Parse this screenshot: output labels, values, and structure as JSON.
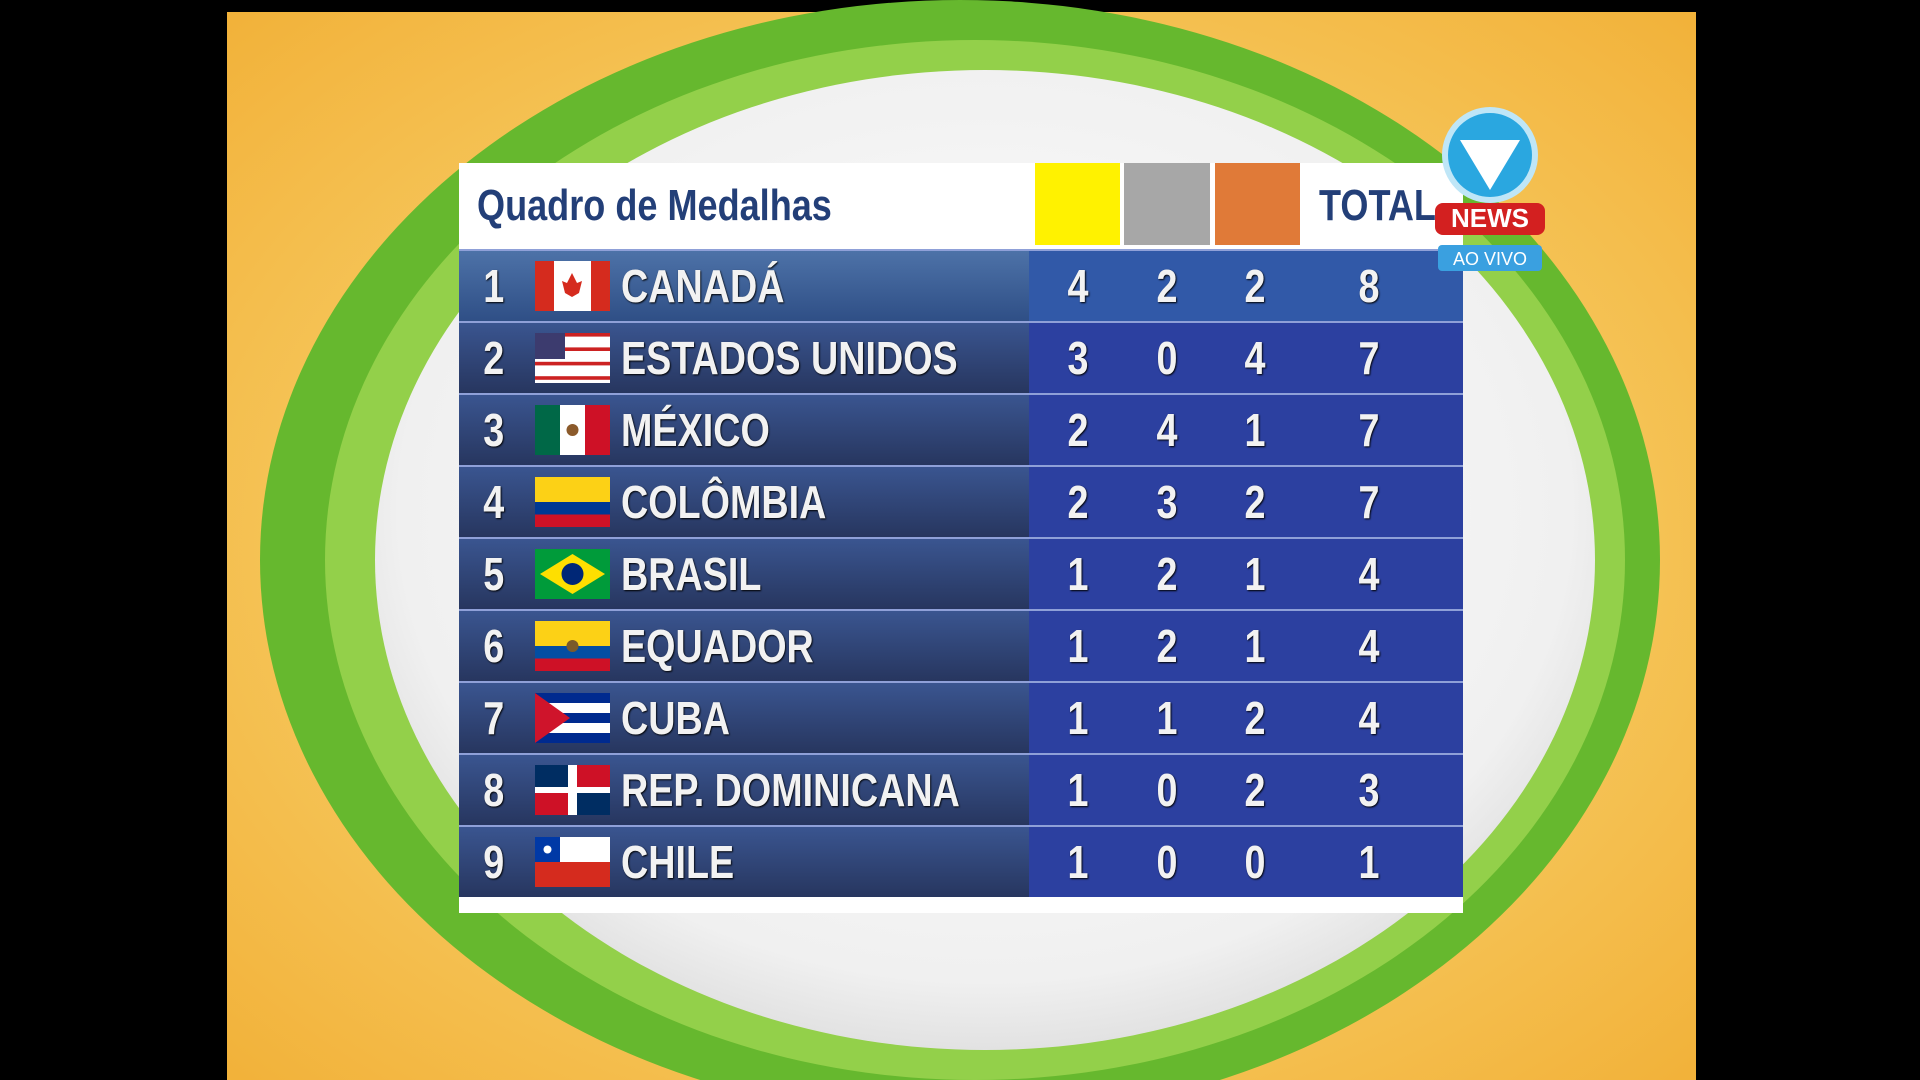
{
  "header": {
    "title": "Quadro de Medalhas",
    "total_label": "TOTAL"
  },
  "logo": {
    "brand": "NEWS",
    "status": "AO VIVO"
  },
  "table": {
    "rows": [
      {
        "rank": 1,
        "country": "CANADÁ",
        "gold": 4,
        "silver": 2,
        "bronze": 2,
        "total": 8
      },
      {
        "rank": 2,
        "country": "ESTADOS UNIDOS",
        "gold": 3,
        "silver": 0,
        "bronze": 4,
        "total": 7
      },
      {
        "rank": 3,
        "country": "MÉXICO",
        "gold": 2,
        "silver": 4,
        "bronze": 1,
        "total": 7
      },
      {
        "rank": 4,
        "country": "COLÔMBIA",
        "gold": 2,
        "silver": 3,
        "bronze": 2,
        "total": 7
      },
      {
        "rank": 5,
        "country": "BRASIL",
        "gold": 1,
        "silver": 2,
        "bronze": 1,
        "total": 4
      },
      {
        "rank": 6,
        "country": "EQUADOR",
        "gold": 1,
        "silver": 2,
        "bronze": 1,
        "total": 4
      },
      {
        "rank": 7,
        "country": "CUBA",
        "gold": 1,
        "silver": 1,
        "bronze": 2,
        "total": 4
      },
      {
        "rank": 8,
        "country": "REP. DOMINICANA",
        "gold": 1,
        "silver": 0,
        "bronze": 2,
        "total": 3
      },
      {
        "rank": 9,
        "country": "CHILE",
        "gold": 1,
        "silver": 0,
        "bronze": 0,
        "total": 1
      }
    ]
  }
}
